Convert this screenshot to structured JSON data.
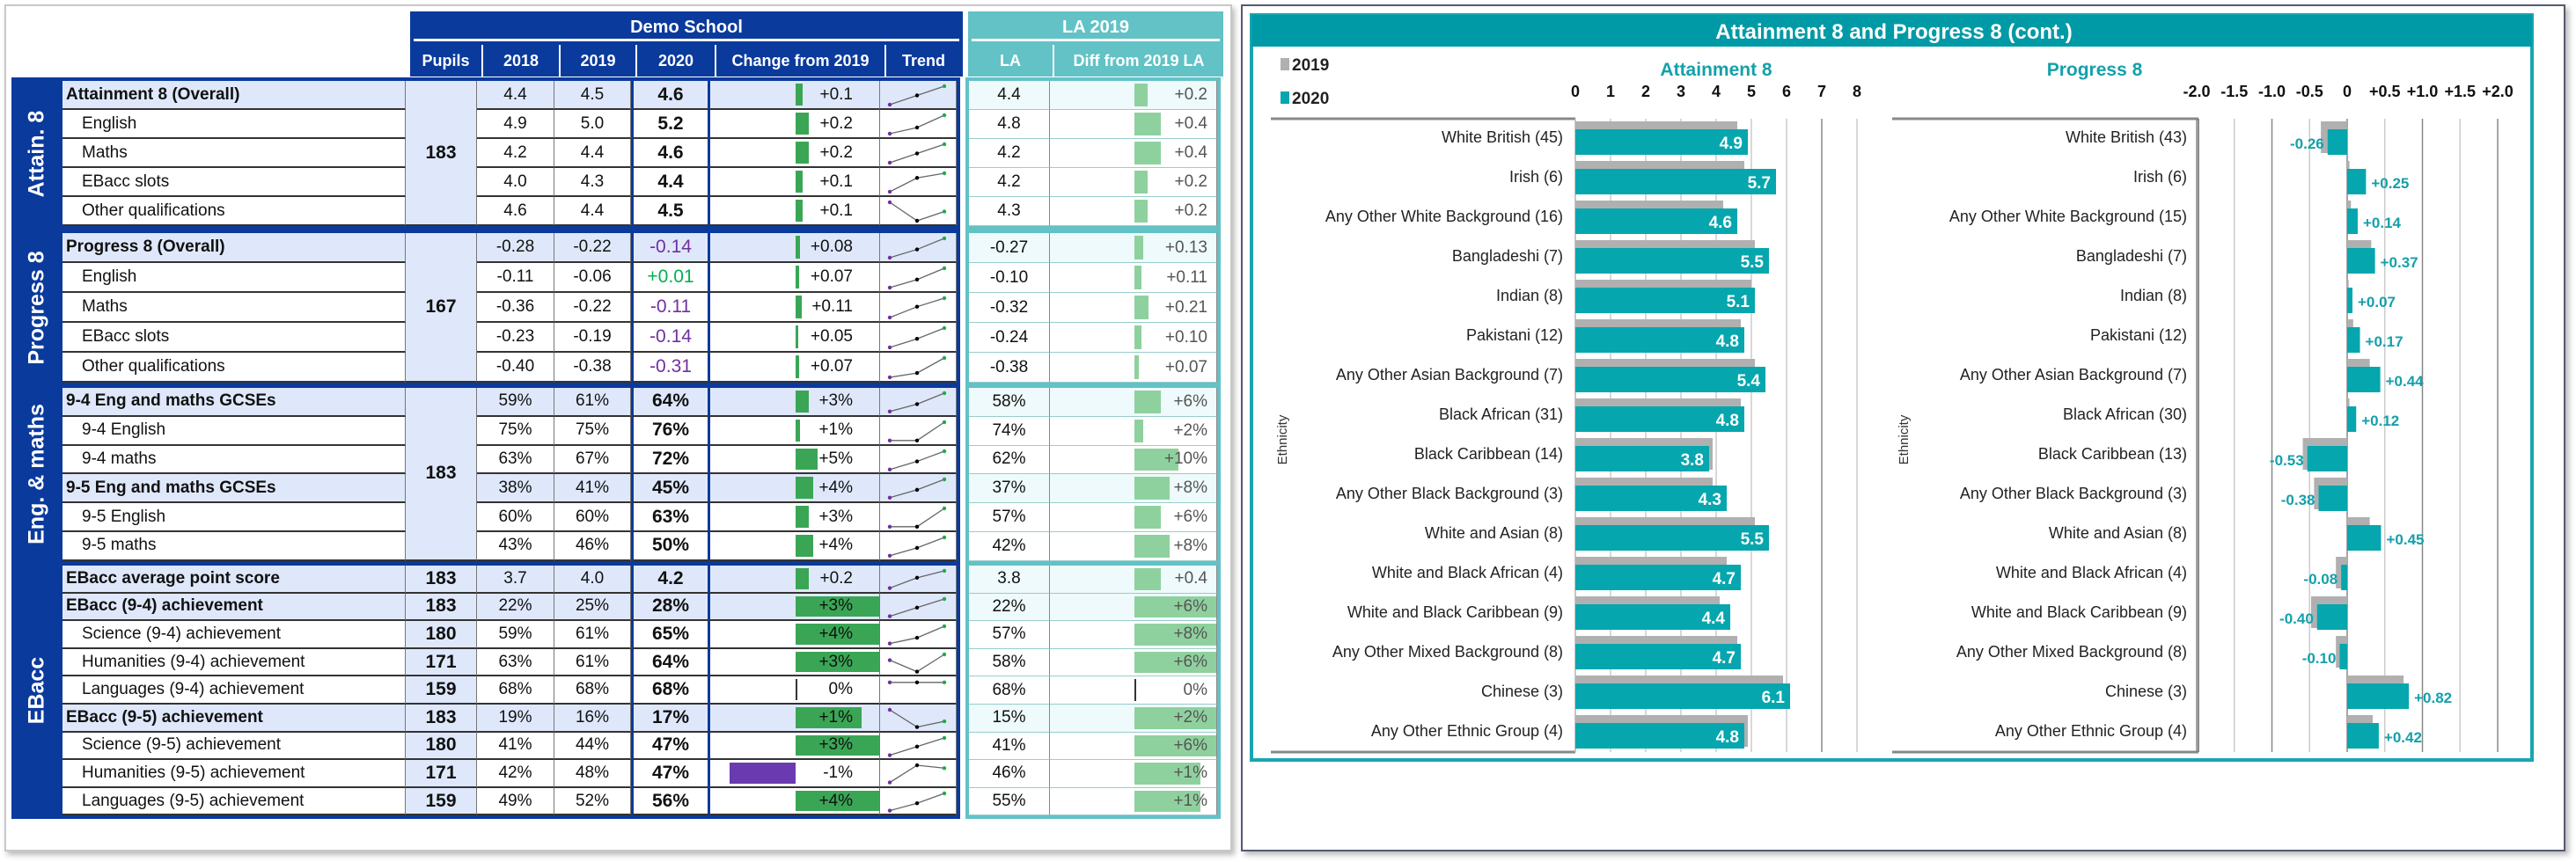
{
  "table": {
    "school_title": "Demo School",
    "la_title": "LA 2019",
    "headers": {
      "pupils": "Pupils",
      "y2018": "2018",
      "y2019": "2019",
      "y2020": "2020",
      "change": "Change from 2019",
      "trend": "Trend",
      "la": "LA",
      "diff": "Diff from 2019 LA"
    },
    "colors": {
      "school": "#0a3a9c",
      "la": "#62c2c6",
      "bar_pos": "#3aa655",
      "bar_neg": "#6a3ab0",
      "diff_bar": "#8fd19e",
      "p8_neg": "#7030a0",
      "p8_pos": "#00b050"
    },
    "groups": [
      {
        "label": "Attain. 8",
        "pupils": "183",
        "rows": [
          {
            "label": "Attainment 8 (Overall)",
            "bold": true,
            "y2018": "4.4",
            "y2019": "4.5",
            "y2020": "4.6",
            "change": "+0.1",
            "la": "4.4",
            "diff": "+0.2"
          },
          {
            "label": "English",
            "y2018": "4.9",
            "y2019": "5.0",
            "y2020": "5.2",
            "change": "+0.2",
            "la": "4.8",
            "diff": "+0.4"
          },
          {
            "label": "Maths",
            "y2018": "4.2",
            "y2019": "4.4",
            "y2020": "4.6",
            "change": "+0.2",
            "la": "4.2",
            "diff": "+0.4"
          },
          {
            "label": "EBacc slots",
            "y2018": "4.0",
            "y2019": "4.3",
            "y2020": "4.4",
            "change": "+0.1",
            "la": "4.2",
            "diff": "+0.2"
          },
          {
            "label": "Other qualifications",
            "y2018": "4.6",
            "y2019": "4.4",
            "y2020": "4.5",
            "change": "+0.1",
            "la": "4.3",
            "diff": "+0.2"
          }
        ]
      },
      {
        "label": "Progress 8",
        "pupils": "167",
        "rows": [
          {
            "label": "Progress 8 (Overall)",
            "bold": true,
            "y2018": "-0.28",
            "y2019": "-0.22",
            "y2020": "-0.14",
            "change": "+0.08",
            "la": "-0.27",
            "diff": "+0.13"
          },
          {
            "label": "English",
            "y2018": "-0.11",
            "y2019": "-0.06",
            "y2020": "+0.01",
            "change": "+0.07",
            "la": "-0.10",
            "diff": "+0.11"
          },
          {
            "label": "Maths",
            "y2018": "-0.36",
            "y2019": "-0.22",
            "y2020": "-0.11",
            "change": "+0.11",
            "la": "-0.32",
            "diff": "+0.21"
          },
          {
            "label": "EBacc slots",
            "y2018": "-0.23",
            "y2019": "-0.19",
            "y2020": "-0.14",
            "change": "+0.05",
            "la": "-0.24",
            "diff": "+0.10"
          },
          {
            "label": "Other qualifications",
            "y2018": "-0.40",
            "y2019": "-0.38",
            "y2020": "-0.31",
            "change": "+0.07",
            "la": "-0.38",
            "diff": "+0.07"
          }
        ]
      },
      {
        "label": "Eng. & maths",
        "pupils": "183",
        "rows": [
          {
            "label": "9-4 Eng and maths GCSEs",
            "bold": true,
            "y2018": "59%",
            "y2019": "61%",
            "y2020": "64%",
            "change": "+3%",
            "la": "58%",
            "diff": "+6%"
          },
          {
            "label": "9-4 English",
            "y2018": "75%",
            "y2019": "75%",
            "y2020": "76%",
            "change": "+1%",
            "la": "74%",
            "diff": "+2%"
          },
          {
            "label": "9-4 maths",
            "y2018": "63%",
            "y2019": "67%",
            "y2020": "72%",
            "change": "+5%",
            "la": "62%",
            "diff": "+10%"
          },
          {
            "label": "9-5 Eng and maths GCSEs",
            "bold": true,
            "y2018": "38%",
            "y2019": "41%",
            "y2020": "45%",
            "change": "+4%",
            "la": "37%",
            "diff": "+8%"
          },
          {
            "label": "9-5 English",
            "y2018": "60%",
            "y2019": "60%",
            "y2020": "63%",
            "change": "+3%",
            "la": "57%",
            "diff": "+6%"
          },
          {
            "label": "9-5 maths",
            "y2018": "43%",
            "y2019": "46%",
            "y2020": "50%",
            "change": "+4%",
            "la": "42%",
            "diff": "+8%"
          }
        ]
      },
      {
        "label": "EBacc",
        "rows": [
          {
            "label": "EBacc average point score",
            "bold": true,
            "pupils": "183",
            "y2018": "3.7",
            "y2019": "4.0",
            "y2020": "4.2",
            "change": "+0.2",
            "la": "3.8",
            "diff": "+0.4"
          },
          {
            "label": "EBacc (9-4) achievement",
            "bold": true,
            "pupils": "183",
            "y2018": "22%",
            "y2019": "25%",
            "y2020": "28%",
            "change": "+3%",
            "la": "22%",
            "diff": "+6%"
          },
          {
            "label": "Science (9-4) achievement",
            "pupils": "180",
            "y2018": "59%",
            "y2019": "61%",
            "y2020": "65%",
            "change": "+4%",
            "la": "57%",
            "diff": "+8%"
          },
          {
            "label": "Humanities (9-4) achievement",
            "pupils": "171",
            "y2018": "63%",
            "y2019": "61%",
            "y2020": "64%",
            "change": "+3%",
            "la": "58%",
            "diff": "+6%"
          },
          {
            "label": "Languages (9-4) achievement",
            "pupils": "159",
            "y2018": "68%",
            "y2019": "68%",
            "y2020": "68%",
            "change": "0%",
            "la": "68%",
            "diff": "0%"
          },
          {
            "label": "EBacc (9-5) achievement",
            "bold": true,
            "pupils": "183",
            "y2018": "19%",
            "y2019": "16%",
            "y2020": "17%",
            "change": "+1%",
            "la": "15%",
            "diff": "+2%"
          },
          {
            "label": "Science (9-5) achievement",
            "pupils": "180",
            "y2018": "41%",
            "y2019": "44%",
            "y2020": "47%",
            "change": "+3%",
            "la": "41%",
            "diff": "+6%"
          },
          {
            "label": "Humanities (9-5) achievement",
            "pupils": "171",
            "y2018": "42%",
            "y2019": "48%",
            "y2020": "47%",
            "change": "-1%",
            "la": "46%",
            "diff": "+1%"
          },
          {
            "label": "Languages (9-5) achievement",
            "pupils": "159",
            "y2018": "49%",
            "y2019": "52%",
            "y2020": "56%",
            "change": "+4%",
            "la": "55%",
            "diff": "+1%"
          }
        ]
      }
    ]
  },
  "chart_data": [
    {
      "type": "bar",
      "orientation": "horizontal",
      "panel_title": "Attainment 8 and Progress 8 (cont.)",
      "title": "Attainment 8",
      "ylabel": "Ethnicity",
      "xlim": [
        0,
        8
      ],
      "ticks": [
        "0",
        "1",
        "2",
        "3",
        "4",
        "5",
        "6",
        "7",
        "8"
      ],
      "legend": [
        "2019",
        "2020"
      ],
      "legend_position": "top-left",
      "categories": [
        "White British (45)",
        "Irish (6)",
        "Any Other White Background (16)",
        "Bangladeshi (7)",
        "Indian (8)",
        "Pakistani (12)",
        "Any Other Asian Background (7)",
        "Black African (31)",
        "Black Caribbean (14)",
        "Any Other Black Background (3)",
        "White and Asian (8)",
        "White and Black African (4)",
        "White and Black Caribbean (9)",
        "Any Other Mixed Background (8)",
        "Chinese (3)",
        "Any Other Ethnic Group (4)"
      ],
      "series": [
        {
          "name": "2019",
          "color": "#b0b0b0",
          "values": [
            4.6,
            4.8,
            4.2,
            5.1,
            5.0,
            4.7,
            5.1,
            4.7,
            3.9,
            3.9,
            5.1,
            4.3,
            4.1,
            4.6,
            5.9,
            4.9
          ]
        },
        {
          "name": "2020",
          "color": "#06a6ae",
          "values": [
            4.9,
            5.7,
            4.6,
            5.5,
            5.1,
            4.8,
            5.4,
            4.8,
            3.8,
            4.3,
            5.5,
            4.7,
            4.4,
            4.7,
            6.1,
            4.8
          ],
          "labels": [
            "4.9",
            "5.7",
            "4.6",
            "5.5",
            "5.1",
            "4.8",
            "5.4",
            "4.8",
            "3.8",
            "4.3",
            "5.5",
            "4.7",
            "4.4",
            "4.7",
            "6.1",
            "4.8"
          ]
        }
      ]
    },
    {
      "type": "bar",
      "orientation": "horizontal",
      "title": "Progress 8",
      "ylabel": "Ethnicity",
      "xlim": [
        -2,
        2
      ],
      "ticks": [
        "-2.0",
        "-1.5",
        "-1.0",
        "-0.5",
        "0",
        "+0.5",
        "+1.0",
        "+1.5",
        "+2.0"
      ],
      "categories": [
        "White British (43)",
        "Irish (6)",
        "Any Other White Background (15)",
        "Bangladeshi (7)",
        "Indian (8)",
        "Pakistani (12)",
        "Any Other Asian Background (7)",
        "Black African (30)",
        "Black Caribbean (13)",
        "Any Other Black Background (3)",
        "White and Asian (8)",
        "White and Black African (4)",
        "White and Black Caribbean (9)",
        "Any Other Mixed Background (8)",
        "Chinese (3)",
        "Any Other Ethnic Group (4)"
      ],
      "series": [
        {
          "name": "2019",
          "color": "#b0b0b0",
          "values": [
            -0.35,
            0.03,
            0.05,
            0.32,
            0.02,
            0.08,
            0.3,
            0.03,
            -0.59,
            -0.44,
            0.3,
            -0.15,
            -0.48,
            -0.15,
            0.75,
            0.34
          ]
        },
        {
          "name": "2020",
          "color": "#06a6ae",
          "values": [
            -0.26,
            0.25,
            0.14,
            0.37,
            0.07,
            0.17,
            0.44,
            0.12,
            -0.53,
            -0.38,
            0.45,
            -0.08,
            -0.4,
            -0.1,
            0.82,
            0.42
          ],
          "labels": [
            "-0.26",
            "+0.25",
            "+0.14",
            "+0.37",
            "+0.07",
            "+0.17",
            "+0.44",
            "+0.12",
            "-0.53",
            "-0.38",
            "+0.45",
            "-0.08",
            "-0.40",
            "-0.10",
            "+0.82",
            "+0.42"
          ]
        }
      ]
    }
  ]
}
